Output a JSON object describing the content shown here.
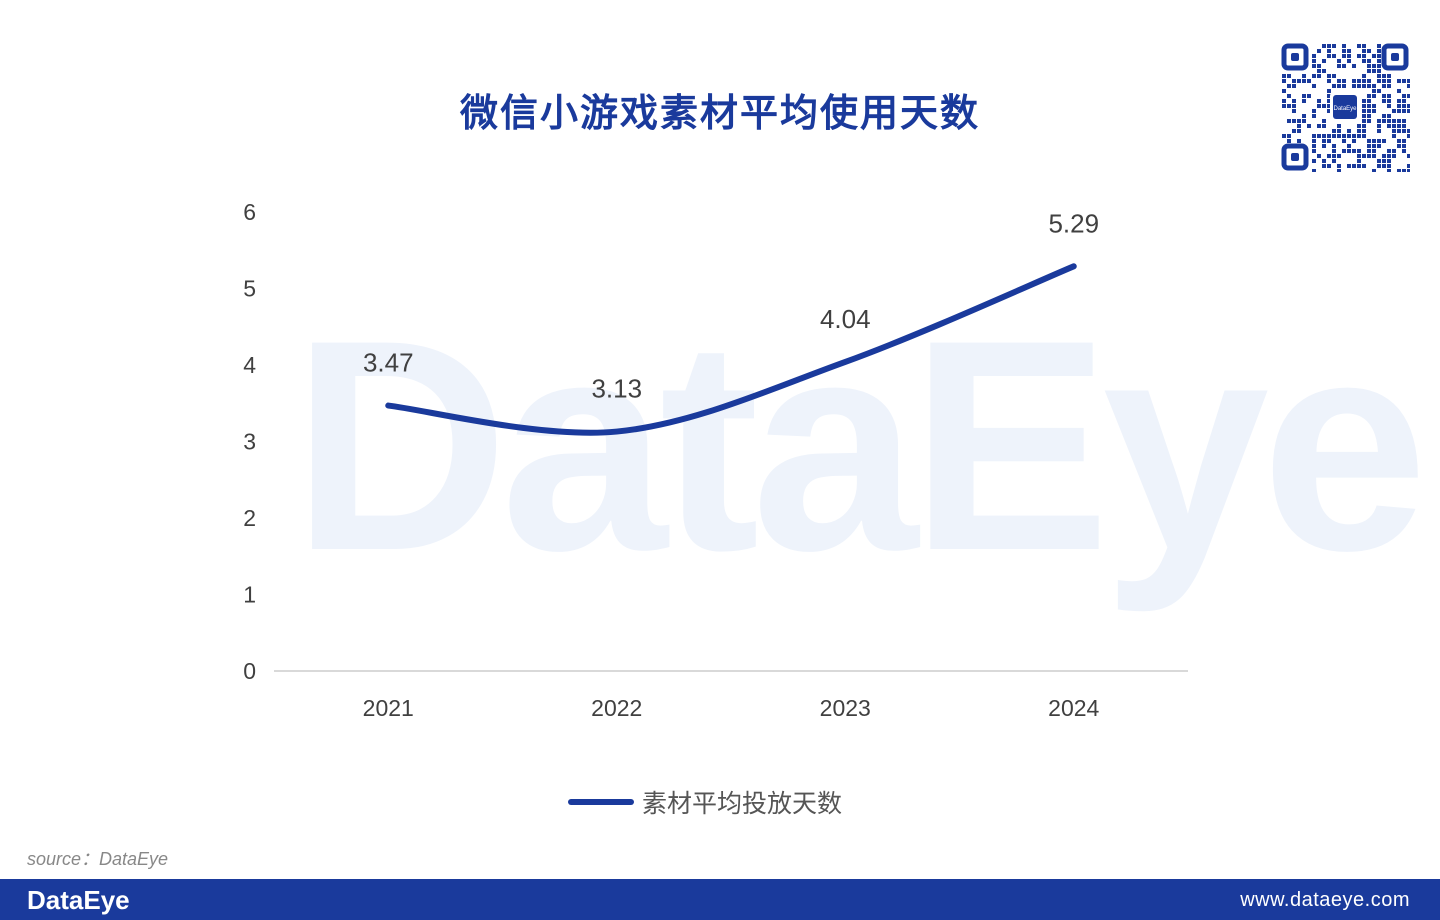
{
  "title": "微信小游戏素材平均使用天数",
  "watermark": "DataEye",
  "qr": {
    "center_label": "DataEye"
  },
  "chart_data": {
    "type": "line",
    "categories": [
      "2021",
      "2022",
      "2023",
      "2024"
    ],
    "series": [
      {
        "name": "素材平均投放天数",
        "values": [
          3.47,
          3.13,
          4.04,
          5.29
        ],
        "color": "#1a3a9c"
      }
    ],
    "data_labels": [
      "3.47",
      "3.13",
      "4.04",
      "5.29"
    ],
    "ylim": [
      0,
      6
    ],
    "yticks": [
      0,
      1,
      2,
      3,
      4,
      5,
      6
    ],
    "grid": false,
    "smooth": true,
    "legend": "bottom-center"
  },
  "legend": {
    "label": "素材平均投放天数"
  },
  "source": "source：DataEye",
  "footer": {
    "logo": "DataEye",
    "url": "www.dataeye.com",
    "color": "#1a3a9c"
  }
}
